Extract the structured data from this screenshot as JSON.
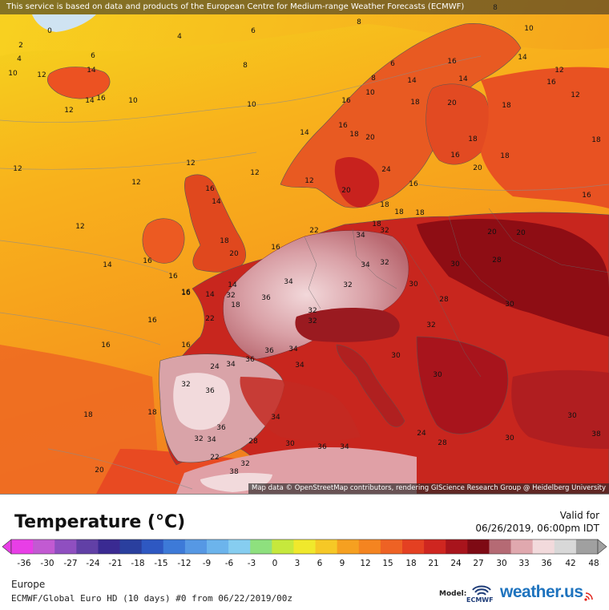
{
  "header": {
    "attribution": "This service is based on data and products of the European Centre for Medium-range Weather Forecasts (ECMWF)"
  },
  "map": {
    "attribution": "Map data © OpenStreetMap contributors, rendering GIScience Research Group @ Heidelberg University",
    "labels": [
      {
        "t": "8"
      },
      {
        "t": "8"
      },
      {
        "t": "0"
      },
      {
        "t": "4"
      },
      {
        "t": "6"
      },
      {
        "t": "2"
      },
      {
        "t": "6"
      },
      {
        "t": "4"
      },
      {
        "t": "8"
      },
      {
        "t": "10"
      },
      {
        "t": "12"
      },
      {
        "t": "14"
      },
      {
        "t": "14"
      },
      {
        "t": "16"
      },
      {
        "t": "10"
      },
      {
        "t": "12"
      },
      {
        "t": "10"
      },
      {
        "t": "6"
      },
      {
        "t": "8"
      },
      {
        "t": "10"
      },
      {
        "t": "14"
      },
      {
        "t": "16"
      },
      {
        "t": "14"
      },
      {
        "t": "14"
      },
      {
        "t": "12"
      },
      {
        "t": "16"
      },
      {
        "t": "10"
      },
      {
        "t": "16"
      },
      {
        "t": "12"
      },
      {
        "t": "18"
      },
      {
        "t": "18"
      },
      {
        "t": "20"
      },
      {
        "t": "16"
      },
      {
        "t": "18"
      },
      {
        "t": "20"
      },
      {
        "t": "14"
      },
      {
        "t": "18"
      },
      {
        "t": "16"
      },
      {
        "t": "18"
      },
      {
        "t": "18"
      },
      {
        "t": "12"
      },
      {
        "t": "12"
      },
      {
        "t": "12"
      },
      {
        "t": "12"
      },
      {
        "t": "16"
      },
      {
        "t": "14"
      },
      {
        "t": "12"
      },
      {
        "t": "24"
      },
      {
        "t": "20"
      },
      {
        "t": "18"
      },
      {
        "t": "16"
      },
      {
        "t": "20"
      },
      {
        "t": "18"
      },
      {
        "t": "16"
      },
      {
        "t": "12"
      },
      {
        "t": "18"
      },
      {
        "t": "14"
      },
      {
        "t": "16"
      },
      {
        "t": "20"
      },
      {
        "t": "16"
      },
      {
        "t": "18"
      },
      {
        "t": "18"
      },
      {
        "t": "16"
      },
      {
        "t": "14"
      },
      {
        "t": "16"
      },
      {
        "t": "34"
      },
      {
        "t": "32"
      },
      {
        "t": "20"
      },
      {
        "t": "22"
      },
      {
        "t": "20"
      },
      {
        "t": "14"
      },
      {
        "t": "16"
      },
      {
        "t": "16"
      },
      {
        "t": "34"
      },
      {
        "t": "32"
      },
      {
        "t": "30"
      },
      {
        "t": "28"
      },
      {
        "t": "36"
      },
      {
        "t": "16"
      },
      {
        "t": "30"
      },
      {
        "t": "32"
      },
      {
        "t": "18"
      },
      {
        "t": "34"
      },
      {
        "t": "32"
      },
      {
        "t": "30"
      },
      {
        "t": "36"
      },
      {
        "t": "32"
      },
      {
        "t": "32"
      },
      {
        "t": "22"
      },
      {
        "t": "16"
      },
      {
        "t": "34"
      },
      {
        "t": "36"
      },
      {
        "t": "34"
      },
      {
        "t": "30"
      },
      {
        "t": "24"
      },
      {
        "t": "34"
      },
      {
        "t": "32"
      },
      {
        "t": "30"
      },
      {
        "t": "36"
      },
      {
        "t": "32"
      },
      {
        "t": "18"
      },
      {
        "t": "18"
      },
      {
        "t": "36"
      },
      {
        "t": "34"
      },
      {
        "t": "32"
      },
      {
        "t": "28"
      },
      {
        "t": "30"
      },
      {
        "t": "20"
      },
      {
        "t": "22"
      },
      {
        "t": "38"
      },
      {
        "t": "38"
      },
      {
        "t": "32"
      },
      {
        "t": "36"
      },
      {
        "t": "34"
      },
      {
        "t": "28"
      },
      {
        "t": "30"
      },
      {
        "t": "30"
      },
      {
        "t": "34"
      },
      {
        "t": "24"
      },
      {
        "t": "28"
      }
    ]
  },
  "legend": {
    "title": "Temperature (°C)",
    "valid_label": "Valid for",
    "valid_time": "06/26/2019, 06:00pm IDT",
    "ticks": [
      "-36",
      "-30",
      "-27",
      "-24",
      "-21",
      "-18",
      "-15",
      "-12",
      "-9",
      "-6",
      "-3",
      "0",
      "3",
      "6",
      "9",
      "12",
      "15",
      "18",
      "21",
      "24",
      "27",
      "30",
      "33",
      "36",
      "42",
      "48"
    ],
    "region": "Europe",
    "model_line": "ECMWF/Global Euro HD (10 days) #0 from 06/22/2019/00z",
    "model_label": "Model:",
    "model_logo_text": "ECMWF",
    "brand": "weather.us"
  },
  "colors": {
    "scale": [
      "#e83ee6",
      "#c25ad2",
      "#8f4fc0",
      "#6140a6",
      "#3a2a92",
      "#2a3f9e",
      "#2e58c2",
      "#3d7ad8",
      "#5698e4",
      "#6cb4ec",
      "#86cdf0",
      "#8ee07e",
      "#c6e83c",
      "#f0e82c",
      "#f6c826",
      "#f6a020",
      "#f48420",
      "#ee6224",
      "#e44022",
      "#cf2620",
      "#a8141c",
      "#7e0a14",
      "#b56a74",
      "#e0a8ae",
      "#f2dadc",
      "#d8d8d8",
      "#a0a0a0"
    ],
    "sea_warm": "#f7931e",
    "heat_dark": "#8e0d14"
  }
}
